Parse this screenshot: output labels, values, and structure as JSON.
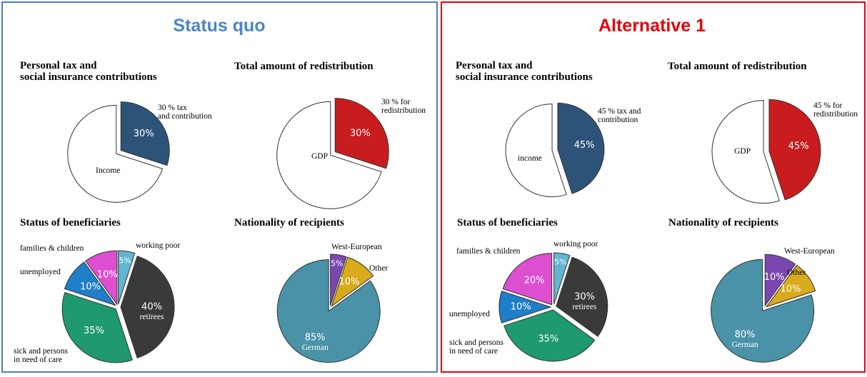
{
  "panels": [
    {
      "title": "Status quo",
      "chart_data": [
        {
          "type": "pie",
          "title": "Personal tax and\n social insurance contributions",
          "categories": [
            "30 % tax\nand contribution",
            "Income"
          ],
          "values": [
            30,
            70
          ],
          "value_labels": [
            "30%",
            null
          ],
          "colors": [
            "#2e5379",
            "#ffffff"
          ]
        },
        {
          "type": "pie",
          "title": "Total amount of redistribution",
          "categories": [
            "30 % for\nredistribution",
            "GDP"
          ],
          "values": [
            30,
            70
          ],
          "value_labels": [
            "30%",
            null
          ],
          "colors": [
            "#c81c1e",
            "#ffffff"
          ]
        },
        {
          "type": "pie",
          "title": "Status of beneficiaries",
          "categories": [
            "working poor",
            "retirees",
            "sick and persons\nin need of care",
            "unemployed",
            "families & children"
          ],
          "values": [
            5,
            40,
            35,
            10,
            10
          ],
          "value_labels": [
            "5%",
            "40%",
            "35%",
            "10%",
            "10%"
          ],
          "colors": [
            "#62b5d0",
            "#3a3a3a",
            "#1e9a6e",
            "#1f7ec8",
            "#dd4fcf"
          ]
        },
        {
          "type": "pie",
          "title": "Nationality of recipients",
          "categories": [
            "West-European",
            "Other",
            "German"
          ],
          "values": [
            5,
            10,
            85
          ],
          "value_labels": [
            "5%",
            "10%",
            "85%"
          ],
          "colors": [
            "#7a47b0",
            "#d8aa1c",
            "#4a92a8"
          ]
        }
      ]
    },
    {
      "title": "Alternative 1",
      "chart_data": [
        {
          "type": "pie",
          "title": "Personal tax and\nsocial insurance contributions",
          "categories": [
            "45 % tax and\ncontribution",
            "income"
          ],
          "values": [
            45,
            55
          ],
          "value_labels": [
            "45%",
            null
          ],
          "colors": [
            "#2e5379",
            "#ffffff"
          ]
        },
        {
          "type": "pie",
          "title": "Total amount of redistribution",
          "categories": [
            "45 % for\nredistribution",
            "GDP"
          ],
          "values": [
            45,
            55
          ],
          "value_labels": [
            "45%",
            null
          ],
          "colors": [
            "#c81c1e",
            "#ffffff"
          ]
        },
        {
          "type": "pie",
          "title": "Status of beneficiaries",
          "categories": [
            "working poor",
            "retirees",
            "sick and persons\nin need of care",
            "unemployed",
            "families & children"
          ],
          "values": [
            5,
            30,
            35,
            10,
            20
          ],
          "value_labels": [
            "5%",
            "30%",
            "35%",
            "10%",
            "20%"
          ],
          "colors": [
            "#62b5d0",
            "#3a3a3a",
            "#1e9a6e",
            "#1f7ec8",
            "#dd4fcf"
          ]
        },
        {
          "type": "pie",
          "title": "Nationality of recipients",
          "categories": [
            "West-European",
            "Other",
            "German"
          ],
          "values": [
            10,
            10,
            80
          ],
          "value_labels": [
            "10%",
            "10%",
            "80%"
          ],
          "colors": [
            "#7a47b0",
            "#d8aa1c",
            "#4a92a8"
          ]
        }
      ]
    }
  ]
}
